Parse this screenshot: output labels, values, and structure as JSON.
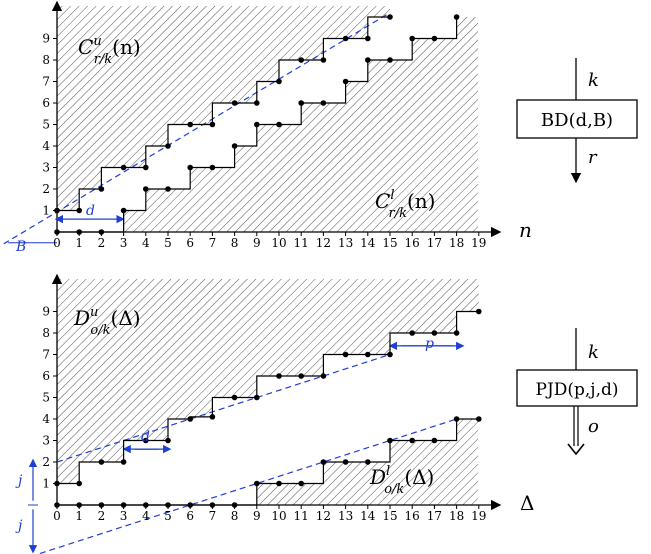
{
  "top_chart": {
    "axis_label": "n",
    "x_ticks": [
      "0",
      "1",
      "2",
      "3",
      "4",
      "5",
      "6",
      "7",
      "8",
      "9",
      "10",
      "11",
      "12",
      "13",
      "14",
      "15",
      "16",
      "17",
      "18",
      "19"
    ],
    "y_ticks": [
      "1",
      "2",
      "3",
      "4",
      "5",
      "6",
      "7",
      "8",
      "9"
    ],
    "upper_label": {
      "base": "C",
      "sup": "u",
      "sub": "r/k",
      "arg": "(n)"
    },
    "lower_label": {
      "base": "C",
      "sup": "l",
      "sub": "r/k",
      "arg": "(n)"
    },
    "burst_label": "B",
    "delay_label": "d",
    "upper_curve": [
      [
        0,
        1
      ],
      [
        1,
        1
      ],
      [
        1,
        2
      ],
      [
        2,
        2
      ],
      [
        2,
        3
      ],
      [
        3,
        3
      ],
      [
        4,
        3
      ],
      [
        4,
        4
      ],
      [
        5,
        4
      ],
      [
        5,
        5
      ],
      [
        6,
        5
      ],
      [
        7,
        5
      ],
      [
        7,
        6
      ],
      [
        8,
        6
      ],
      [
        9,
        6
      ],
      [
        9,
        7
      ],
      [
        10,
        7
      ],
      [
        10,
        8
      ],
      [
        11,
        8
      ],
      [
        12,
        8
      ],
      [
        12,
        9
      ],
      [
        13,
        9
      ],
      [
        14,
        9
      ],
      [
        14,
        10
      ],
      [
        15,
        10
      ]
    ],
    "upper_points": [
      [
        0,
        1
      ],
      [
        1,
        1
      ],
      [
        2,
        2
      ],
      [
        3,
        3
      ],
      [
        4,
        3
      ],
      [
        5,
        4
      ],
      [
        6,
        5
      ],
      [
        7,
        5
      ],
      [
        8,
        6
      ],
      [
        9,
        6
      ],
      [
        10,
        7
      ],
      [
        11,
        8
      ],
      [
        12,
        8
      ],
      [
        13,
        9
      ],
      [
        14,
        9
      ],
      [
        15,
        10
      ]
    ],
    "lower_curve": [
      [
        0,
        0
      ],
      [
        1,
        0
      ],
      [
        2,
        0
      ],
      [
        3,
        0
      ],
      [
        3,
        1
      ],
      [
        4,
        1
      ],
      [
        4,
        2
      ],
      [
        5,
        2
      ],
      [
        6,
        2
      ],
      [
        6,
        3
      ],
      [
        7,
        3
      ],
      [
        8,
        3
      ],
      [
        8,
        4
      ],
      [
        9,
        4
      ],
      [
        9,
        5
      ],
      [
        10,
        5
      ],
      [
        11,
        5
      ],
      [
        11,
        6
      ],
      [
        12,
        6
      ],
      [
        13,
        6
      ],
      [
        13,
        7
      ],
      [
        14,
        7
      ],
      [
        14,
        8
      ],
      [
        15,
        8
      ],
      [
        16,
        8
      ],
      [
        16,
        9
      ],
      [
        17,
        9
      ],
      [
        18,
        9
      ],
      [
        18,
        10
      ]
    ],
    "lower_points": [
      [
        0,
        0
      ],
      [
        1,
        0
      ],
      [
        2,
        0
      ],
      [
        3,
        1
      ],
      [
        4,
        2
      ],
      [
        5,
        2
      ],
      [
        6,
        3
      ],
      [
        7,
        3
      ],
      [
        8,
        4
      ],
      [
        9,
        5
      ],
      [
        10,
        5
      ],
      [
        11,
        6
      ],
      [
        12,
        6
      ],
      [
        13,
        7
      ],
      [
        14,
        8
      ],
      [
        15,
        8
      ],
      [
        16,
        9
      ],
      [
        17,
        9
      ],
      [
        18,
        10
      ]
    ],
    "bound_line": [
      [
        -2.4,
        -0.55
      ],
      [
        15,
        10.2
      ]
    ]
  },
  "bottom_chart": {
    "axis_label": "Δ",
    "x_ticks": [
      "0",
      "1",
      "2",
      "3",
      "4",
      "5",
      "6",
      "7",
      "8",
      "9",
      "10",
      "11",
      "12",
      "13",
      "14",
      "15",
      "16",
      "17",
      "18",
      "19"
    ],
    "y_ticks": [
      "1",
      "2",
      "3",
      "4",
      "5",
      "6",
      "7",
      "8",
      "9"
    ],
    "upper_label": {
      "base": "D",
      "sup": "u",
      "sub": "o/k",
      "arg": "(Δ)"
    },
    "lower_label": {
      "base": "D",
      "sup": "l",
      "sub": "o/k",
      "arg": "(Δ)"
    },
    "j_label": "j",
    "period_label": "p",
    "delay_label": "d",
    "upper_curve": [
      [
        0,
        1
      ],
      [
        1,
        1
      ],
      [
        1,
        2
      ],
      [
        3,
        2
      ],
      [
        3,
        3
      ],
      [
        5,
        3
      ],
      [
        5,
        4
      ],
      [
        6,
        4
      ],
      [
        6,
        4.1
      ],
      [
        7,
        4.1
      ],
      [
        7,
        5
      ],
      [
        9,
        5
      ],
      [
        9,
        6
      ],
      [
        12,
        6
      ],
      [
        12,
        7
      ],
      [
        15,
        7
      ],
      [
        15,
        8
      ],
      [
        18,
        8
      ],
      [
        18,
        9
      ],
      [
        19,
        9
      ]
    ],
    "upper_points": [
      [
        0,
        1
      ],
      [
        1,
        1
      ],
      [
        2,
        2
      ],
      [
        3,
        2
      ],
      [
        4,
        3
      ],
      [
        5,
        3
      ],
      [
        6,
        4
      ],
      [
        7,
        4.1
      ],
      [
        8,
        5
      ],
      [
        9,
        5
      ],
      [
        10,
        6
      ],
      [
        11,
        6
      ],
      [
        12,
        6
      ],
      [
        13,
        7
      ],
      [
        14,
        7
      ],
      [
        15,
        7
      ],
      [
        16,
        8
      ],
      [
        17,
        8
      ],
      [
        18,
        8
      ],
      [
        19,
        9
      ]
    ],
    "lower_curve": [
      [
        0,
        0
      ],
      [
        9,
        0
      ],
      [
        9,
        1
      ],
      [
        12,
        1
      ],
      [
        12,
        2
      ],
      [
        15,
        2
      ],
      [
        15,
        3
      ],
      [
        18,
        3
      ],
      [
        18,
        4
      ],
      [
        19,
        4
      ]
    ],
    "lower_points": [
      [
        0,
        0
      ],
      [
        1,
        0
      ],
      [
        2,
        0
      ],
      [
        3,
        0
      ],
      [
        4,
        0
      ],
      [
        5,
        0
      ],
      [
        6,
        0
      ],
      [
        7,
        0
      ],
      [
        8,
        0
      ],
      [
        9,
        1
      ],
      [
        10,
        1
      ],
      [
        11,
        1
      ],
      [
        12,
        2
      ],
      [
        13,
        2
      ],
      [
        14,
        2
      ],
      [
        15,
        3
      ],
      [
        16,
        3
      ],
      [
        17,
        3
      ],
      [
        18,
        4
      ],
      [
        19,
        4
      ]
    ],
    "upper_line": [
      [
        0,
        2
      ],
      [
        15,
        7
      ]
    ],
    "lower_line": [
      [
        -1.2,
        -2.4
      ],
      [
        18,
        4
      ]
    ]
  },
  "box1": {
    "input": "k",
    "label": "BD(d,B)",
    "output": "r"
  },
  "box2": {
    "input": "k",
    "label": "PJD(p,j,d)",
    "output": "o"
  },
  "colors": {
    "ink": "#000000",
    "blue": "#1f3fd0",
    "hatch": "#555555"
  }
}
